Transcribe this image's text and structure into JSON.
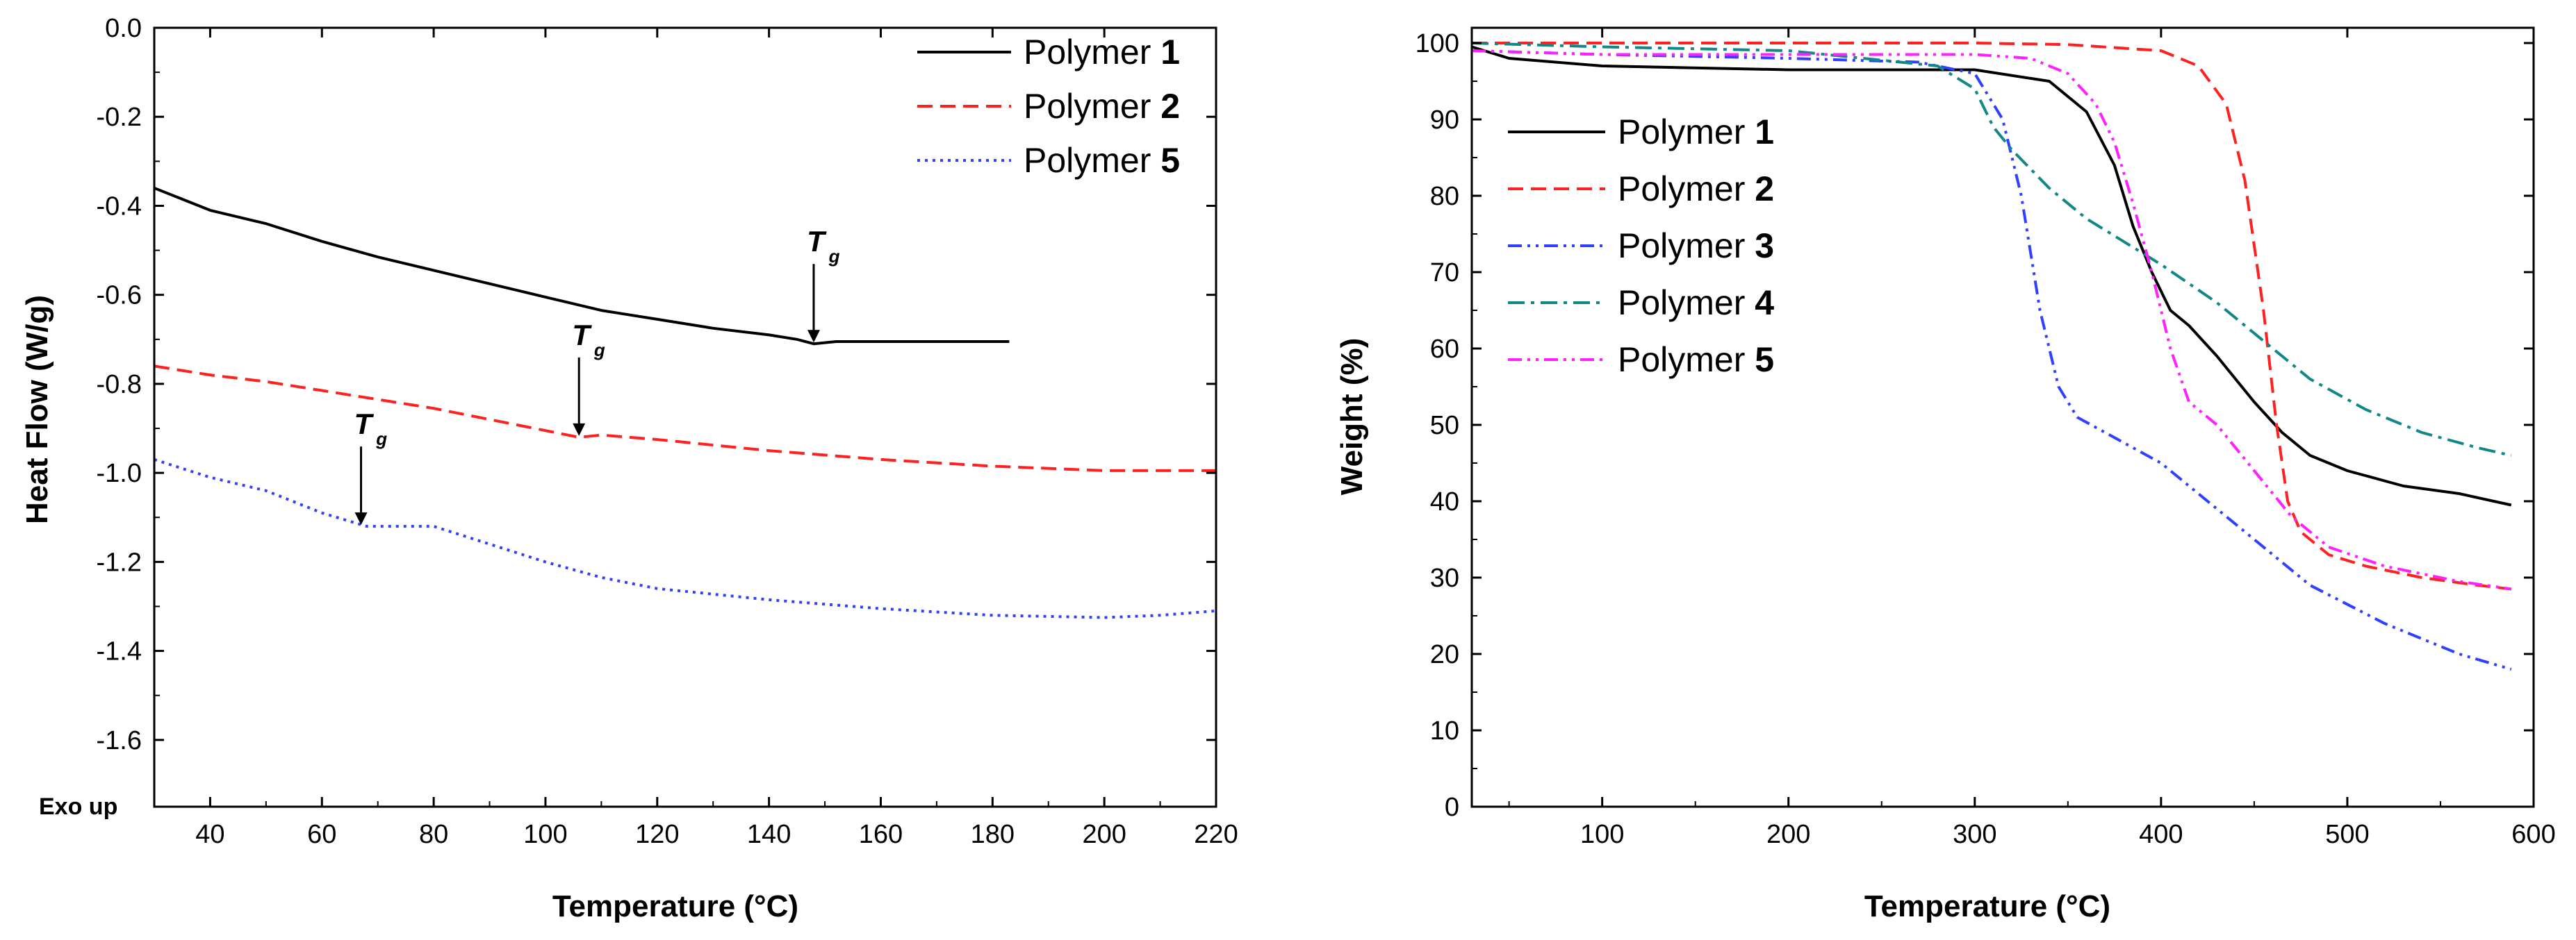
{
  "chart_data": [
    {
      "type": "line",
      "title": "",
      "xlabel": "Temperature (°C)",
      "ylabel": "Heat Flow (W/g)",
      "xlim": [
        30,
        220
      ],
      "ylim": [
        -1.75,
        0.0
      ],
      "x_ticks": [
        40,
        60,
        80,
        100,
        120,
        140,
        160,
        180,
        200,
        220
      ],
      "x_tick_labels": [
        "40",
        "60",
        "80",
        "100",
        "120",
        "140",
        "160",
        "180",
        "200",
        "220"
      ],
      "y_ticks": [
        0.0,
        -0.2,
        -0.4,
        -0.6,
        -0.8,
        -1.0,
        -1.2,
        -1.4,
        -1.6
      ],
      "y_tick_labels": [
        "0.0",
        "-0.2",
        "-0.4",
        "-0.6",
        "-0.8",
        "-1.0",
        "-1.2",
        "-1.4",
        "-1.6"
      ],
      "exo_label": "Exo up",
      "legend_position": "top-right",
      "series": [
        {
          "name": "Polymer 1",
          "legend_prefix": "Polymer ",
          "legend_number": "1",
          "color": "#000000",
          "style": "solid",
          "x": [
            30,
            40,
            50,
            60,
            70,
            80,
            90,
            100,
            110,
            120,
            130,
            140,
            145,
            148,
            152,
            160,
            170,
            183
          ],
          "values": [
            -0.36,
            -0.41,
            -0.44,
            -0.48,
            -0.515,
            -0.545,
            -0.575,
            -0.605,
            -0.635,
            -0.655,
            -0.675,
            -0.69,
            -0.7,
            -0.71,
            -0.705,
            -0.705,
            -0.705,
            -0.705
          ]
        },
        {
          "name": "Polymer 2",
          "legend_prefix": "Polymer ",
          "legend_number": "2",
          "color": "#ff2020",
          "style": "dashed",
          "x": [
            30,
            40,
            50,
            60,
            70,
            80,
            90,
            100,
            106,
            110,
            120,
            140,
            160,
            180,
            200,
            220
          ],
          "values": [
            -0.76,
            -0.78,
            -0.795,
            -0.815,
            -0.835,
            -0.855,
            -0.88,
            -0.905,
            -0.92,
            -0.915,
            -0.925,
            -0.95,
            -0.97,
            -0.985,
            -0.995,
            -0.995
          ]
        },
        {
          "name": "Polymer 5",
          "legend_prefix": "Polymer ",
          "legend_number": "5",
          "color": "#3040ff",
          "style": "dotted",
          "x": [
            30,
            40,
            50,
            60,
            68,
            75,
            80,
            90,
            100,
            110,
            120,
            140,
            160,
            180,
            200,
            210,
            220
          ],
          "values": [
            -0.97,
            -1.01,
            -1.04,
            -1.09,
            -1.12,
            -1.12,
            -1.12,
            -1.16,
            -1.2,
            -1.235,
            -1.26,
            -1.285,
            -1.305,
            -1.32,
            -1.325,
            -1.32,
            -1.31
          ]
        }
      ],
      "annotations": [
        {
          "label": "T",
          "subscript": "g",
          "x": 148,
          "y": -0.71
        },
        {
          "label": "T",
          "subscript": "g",
          "x": 106,
          "y": -0.92
        },
        {
          "label": "T",
          "subscript": "g",
          "x": 67,
          "y": -1.12
        }
      ]
    },
    {
      "type": "line",
      "title": "",
      "xlabel": "Temperature (°C)",
      "ylabel": "Weight (%)",
      "xlim": [
        30,
        600
      ],
      "ylim": [
        0,
        102
      ],
      "x_ticks": [
        100,
        200,
        300,
        400,
        500,
        600
      ],
      "x_tick_labels": [
        "100",
        "200",
        "300",
        "400",
        "500",
        "600"
      ],
      "y_ticks": [
        0,
        10,
        20,
        30,
        40,
        50,
        60,
        70,
        80,
        90,
        100
      ],
      "y_tick_labels": [
        "0",
        "10",
        "20",
        "30",
        "40",
        "50",
        "60",
        "70",
        "80",
        "90",
        "100"
      ],
      "legend_position": "upper-left",
      "series": [
        {
          "name": "Polymer 1",
          "legend_prefix": "Polymer ",
          "legend_number": "1",
          "color": "#000000",
          "style": "solid",
          "x": [
            30,
            50,
            100,
            200,
            300,
            340,
            360,
            375,
            385,
            395,
            405,
            415,
            430,
            450,
            465,
            480,
            500,
            530,
            560,
            588
          ],
          "values": [
            99.5,
            98,
            97,
            96.5,
            96.5,
            95,
            91,
            84,
            76,
            70,
            65,
            63,
            59,
            53,
            49,
            46,
            44,
            42,
            41,
            39.5
          ]
        },
        {
          "name": "Polymer 2",
          "legend_prefix": "Polymer ",
          "legend_number": "2",
          "color": "#ff2020",
          "style": "dashed",
          "x": [
            30,
            100,
            200,
            300,
            350,
            400,
            420,
            435,
            445,
            455,
            462,
            468,
            475,
            490,
            510,
            540,
            570,
            588
          ],
          "values": [
            100,
            100,
            100,
            100,
            99.8,
            99,
            97,
            92,
            82,
            65,
            50,
            40,
            36,
            33,
            31.5,
            30,
            29,
            28.5
          ]
        },
        {
          "name": "Polymer 3",
          "legend_prefix": "Polymer ",
          "legend_number": "3",
          "color": "#3040ff",
          "style": "dashdotdot",
          "x": [
            30,
            100,
            200,
            270,
            300,
            315,
            325,
            335,
            345,
            355,
            370,
            400,
            420,
            450,
            480,
            520,
            560,
            588
          ],
          "values": [
            99,
            98.5,
            98,
            97.5,
            96,
            90,
            80,
            65,
            55,
            51,
            49,
            45,
            41,
            35,
            29,
            24,
            20,
            18
          ]
        },
        {
          "name": "Polymer 4",
          "legend_prefix": "Polymer ",
          "legend_number": "4",
          "color": "#108888",
          "style": "dashdot",
          "x": [
            30,
            100,
            200,
            280,
            300,
            310,
            320,
            340,
            360,
            400,
            430,
            460,
            480,
            510,
            540,
            570,
            588
          ],
          "values": [
            100,
            99.5,
            99,
            97,
            94,
            89,
            86,
            81,
            77,
            71,
            66,
            60,
            56,
            52,
            49,
            47,
            46
          ]
        },
        {
          "name": "Polymer 5",
          "legend_prefix": "Polymer ",
          "legend_number": "5",
          "color": "#ff20ff",
          "style": "dashdotdot",
          "x": [
            30,
            100,
            200,
            300,
            330,
            350,
            365,
            375,
            385,
            395,
            405,
            415,
            430,
            450,
            470,
            490,
            520,
            560,
            588
          ],
          "values": [
            99,
            98.5,
            98.5,
            98.5,
            98,
            96,
            92,
            87,
            79,
            70,
            60,
            53,
            50,
            44,
            38,
            34,
            31.5,
            29.5,
            28.5
          ]
        }
      ]
    }
  ]
}
